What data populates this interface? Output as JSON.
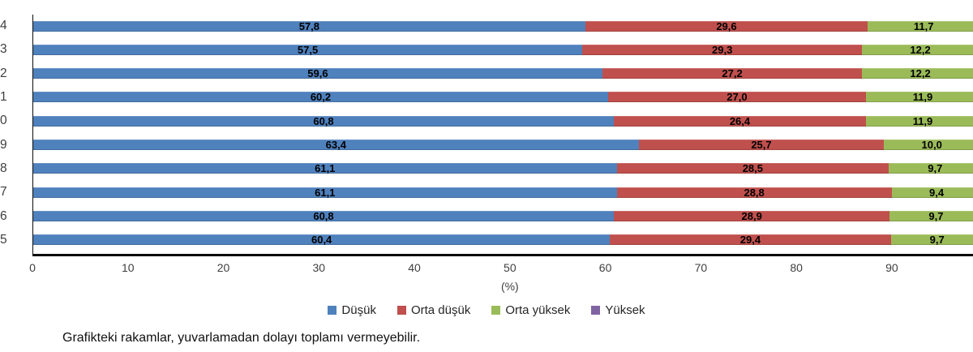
{
  "chart_data": {
    "type": "bar",
    "orientation": "horizontal",
    "stacked": true,
    "categories": [
      "4",
      "3",
      "2",
      "1",
      "0",
      "9",
      "8",
      "7",
      "6",
      "5"
    ],
    "series": [
      {
        "key": "dusuk",
        "name": "Düşük",
        "color": "#4F81BD",
        "values": [
          57.8,
          57.5,
          59.6,
          60.2,
          60.8,
          63.4,
          61.1,
          61.1,
          60.8,
          60.4
        ]
      },
      {
        "key": "orta-dusuk",
        "name": "Orta düşük",
        "color": "#C0504D",
        "values": [
          29.6,
          29.3,
          27.2,
          27.0,
          26.4,
          25.7,
          28.5,
          28.8,
          28.9,
          29.4
        ]
      },
      {
        "key": "orta-yuksek",
        "name": "Orta yüksek",
        "color": "#9BBB59",
        "values": [
          11.7,
          12.2,
          12.2,
          11.9,
          11.9,
          10.0,
          9.7,
          9.4,
          9.7,
          9.7
        ]
      },
      {
        "key": "yuksek",
        "name": "Yüksek",
        "color": "#8064A2",
        "values": []
      }
    ],
    "xlabel": "(%)",
    "x_ticks": [
      0,
      10,
      20,
      30,
      40,
      50,
      60,
      70,
      80,
      90
    ],
    "xlim": [
      0,
      98.5
    ],
    "decimal_separator": ",",
    "value_labels_shown": true,
    "grid": false,
    "legend_position": "bottom"
  },
  "footnote": "Grafikteki rakamlar, yuvarlamadan dolayı toplamı vermeyebilir."
}
